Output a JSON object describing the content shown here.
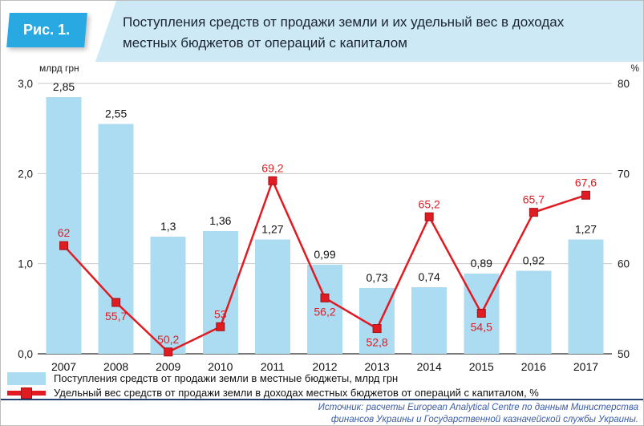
{
  "header": {
    "figure_label": "Рис. 1.",
    "title_line1": "Поступления средств от продажи земли и их удельный вес в доходах",
    "title_line2": "местных бюджетов от операций с капиталом"
  },
  "colors": {
    "header_box": "#29a9e1",
    "header_strip": "#cde9f6",
    "bar": "#abdcf2",
    "line": "#e11b22",
    "source_text": "#3a5da8"
  },
  "source": {
    "line1": "Источник: расчеты European Analytical Centre по данным Министерства",
    "line2": "финансов Украины и Государственной казначейской службы Украины."
  },
  "chart_data": {
    "type": "bar+line",
    "categories": [
      "2007",
      "2008",
      "2009",
      "2010",
      "2011",
      "2012",
      "2013",
      "2014",
      "2015",
      "2016",
      "2017"
    ],
    "series": [
      {
        "name": "Поступления средств от продажи земли в местные бюджеты, млрд грн",
        "type": "bar",
        "axis": "left",
        "color": "#abdcf2",
        "values": [
          2.85,
          2.55,
          1.3,
          1.36,
          1.27,
          0.99,
          0.73,
          0.74,
          0.89,
          0.92,
          1.27
        ],
        "labels": [
          "2,85",
          "2,55",
          "1,3",
          "1,36",
          "1,27",
          "0,99",
          "0,73",
          "0,74",
          "0,89",
          "0,92",
          "1,27"
        ]
      },
      {
        "name": "Удельный вес средств от продажи земли в доходах местных бюджетов от операций с капиталом, %",
        "type": "line",
        "axis": "right",
        "color": "#e11b22",
        "values": [
          62,
          55.7,
          50.2,
          53,
          69.2,
          56.2,
          52.8,
          65.2,
          54.5,
          65.7,
          67.6
        ],
        "labels": [
          "62",
          "55,7",
          "50,2",
          "53",
          "69,2",
          "56,2",
          "52,8",
          "65,2",
          "54,5",
          "65,7",
          "67,6"
        ],
        "label_side": [
          "above",
          "below",
          "above",
          "above",
          "above",
          "below",
          "below",
          "above",
          "below",
          "above",
          "above"
        ]
      }
    ],
    "left_axis": {
      "label": "млрд грн",
      "range": [
        0,
        3
      ],
      "tick_values": [
        0,
        1,
        2,
        3
      ],
      "ticks": [
        "0,0",
        "1,0",
        "2,0",
        "3,0"
      ]
    },
    "right_axis": {
      "label": "%",
      "range": [
        50,
        80
      ],
      "tick_values": [
        50,
        60,
        70,
        80
      ],
      "ticks": [
        "50",
        "60",
        "70",
        "80"
      ]
    },
    "grid": true,
    "legend_position": "bottom"
  }
}
